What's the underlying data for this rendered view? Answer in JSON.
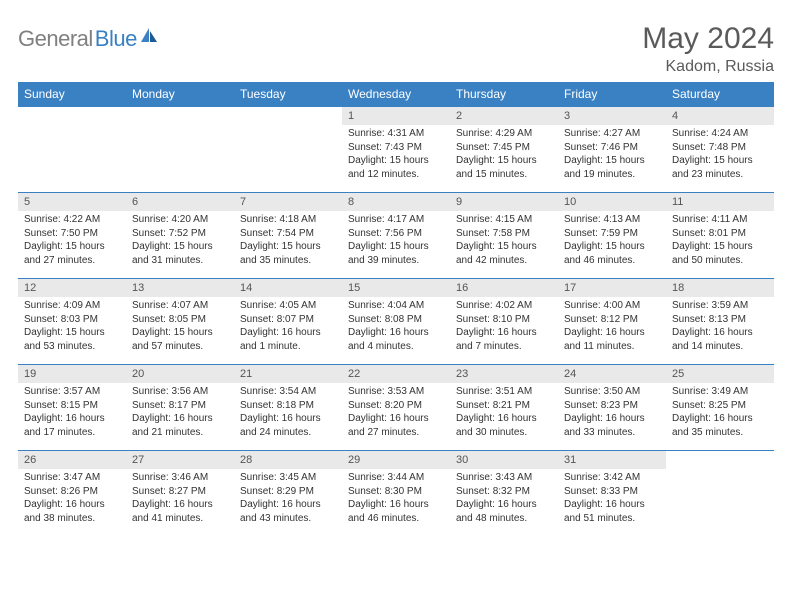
{
  "logo": {
    "general": "General",
    "blue": "Blue"
  },
  "title": {
    "month": "May 2024",
    "location": "Kadom, Russia"
  },
  "colors": {
    "header_bg": "#3a81c4",
    "header_fg": "#ffffff",
    "daynum_bg": "#e9e9e9",
    "daynum_fg": "#555555",
    "border": "#3a81c4",
    "title_fg": "#5a5a5a"
  },
  "weekdays": [
    "Sunday",
    "Monday",
    "Tuesday",
    "Wednesday",
    "Thursday",
    "Friday",
    "Saturday"
  ],
  "weeks": [
    [
      null,
      null,
      null,
      {
        "n": "1",
        "sr": "4:31 AM",
        "ss": "7:43 PM",
        "dl": "15 hours and 12 minutes."
      },
      {
        "n": "2",
        "sr": "4:29 AM",
        "ss": "7:45 PM",
        "dl": "15 hours and 15 minutes."
      },
      {
        "n": "3",
        "sr": "4:27 AM",
        "ss": "7:46 PM",
        "dl": "15 hours and 19 minutes."
      },
      {
        "n": "4",
        "sr": "4:24 AM",
        "ss": "7:48 PM",
        "dl": "15 hours and 23 minutes."
      }
    ],
    [
      {
        "n": "5",
        "sr": "4:22 AM",
        "ss": "7:50 PM",
        "dl": "15 hours and 27 minutes."
      },
      {
        "n": "6",
        "sr": "4:20 AM",
        "ss": "7:52 PM",
        "dl": "15 hours and 31 minutes."
      },
      {
        "n": "7",
        "sr": "4:18 AM",
        "ss": "7:54 PM",
        "dl": "15 hours and 35 minutes."
      },
      {
        "n": "8",
        "sr": "4:17 AM",
        "ss": "7:56 PM",
        "dl": "15 hours and 39 minutes."
      },
      {
        "n": "9",
        "sr": "4:15 AM",
        "ss": "7:58 PM",
        "dl": "15 hours and 42 minutes."
      },
      {
        "n": "10",
        "sr": "4:13 AM",
        "ss": "7:59 PM",
        "dl": "15 hours and 46 minutes."
      },
      {
        "n": "11",
        "sr": "4:11 AM",
        "ss": "8:01 PM",
        "dl": "15 hours and 50 minutes."
      }
    ],
    [
      {
        "n": "12",
        "sr": "4:09 AM",
        "ss": "8:03 PM",
        "dl": "15 hours and 53 minutes."
      },
      {
        "n": "13",
        "sr": "4:07 AM",
        "ss": "8:05 PM",
        "dl": "15 hours and 57 minutes."
      },
      {
        "n": "14",
        "sr": "4:05 AM",
        "ss": "8:07 PM",
        "dl": "16 hours and 1 minute."
      },
      {
        "n": "15",
        "sr": "4:04 AM",
        "ss": "8:08 PM",
        "dl": "16 hours and 4 minutes."
      },
      {
        "n": "16",
        "sr": "4:02 AM",
        "ss": "8:10 PM",
        "dl": "16 hours and 7 minutes."
      },
      {
        "n": "17",
        "sr": "4:00 AM",
        "ss": "8:12 PM",
        "dl": "16 hours and 11 minutes."
      },
      {
        "n": "18",
        "sr": "3:59 AM",
        "ss": "8:13 PM",
        "dl": "16 hours and 14 minutes."
      }
    ],
    [
      {
        "n": "19",
        "sr": "3:57 AM",
        "ss": "8:15 PM",
        "dl": "16 hours and 17 minutes."
      },
      {
        "n": "20",
        "sr": "3:56 AM",
        "ss": "8:17 PM",
        "dl": "16 hours and 21 minutes."
      },
      {
        "n": "21",
        "sr": "3:54 AM",
        "ss": "8:18 PM",
        "dl": "16 hours and 24 minutes."
      },
      {
        "n": "22",
        "sr": "3:53 AM",
        "ss": "8:20 PM",
        "dl": "16 hours and 27 minutes."
      },
      {
        "n": "23",
        "sr": "3:51 AM",
        "ss": "8:21 PM",
        "dl": "16 hours and 30 minutes."
      },
      {
        "n": "24",
        "sr": "3:50 AM",
        "ss": "8:23 PM",
        "dl": "16 hours and 33 minutes."
      },
      {
        "n": "25",
        "sr": "3:49 AM",
        "ss": "8:25 PM",
        "dl": "16 hours and 35 minutes."
      }
    ],
    [
      {
        "n": "26",
        "sr": "3:47 AM",
        "ss": "8:26 PM",
        "dl": "16 hours and 38 minutes."
      },
      {
        "n": "27",
        "sr": "3:46 AM",
        "ss": "8:27 PM",
        "dl": "16 hours and 41 minutes."
      },
      {
        "n": "28",
        "sr": "3:45 AM",
        "ss": "8:29 PM",
        "dl": "16 hours and 43 minutes."
      },
      {
        "n": "29",
        "sr": "3:44 AM",
        "ss": "8:30 PM",
        "dl": "16 hours and 46 minutes."
      },
      {
        "n": "30",
        "sr": "3:43 AM",
        "ss": "8:32 PM",
        "dl": "16 hours and 48 minutes."
      },
      {
        "n": "31",
        "sr": "3:42 AM",
        "ss": "8:33 PM",
        "dl": "16 hours and 51 minutes."
      },
      null
    ]
  ],
  "labels": {
    "sunrise": "Sunrise:",
    "sunset": "Sunset:",
    "daylight": "Daylight:"
  }
}
